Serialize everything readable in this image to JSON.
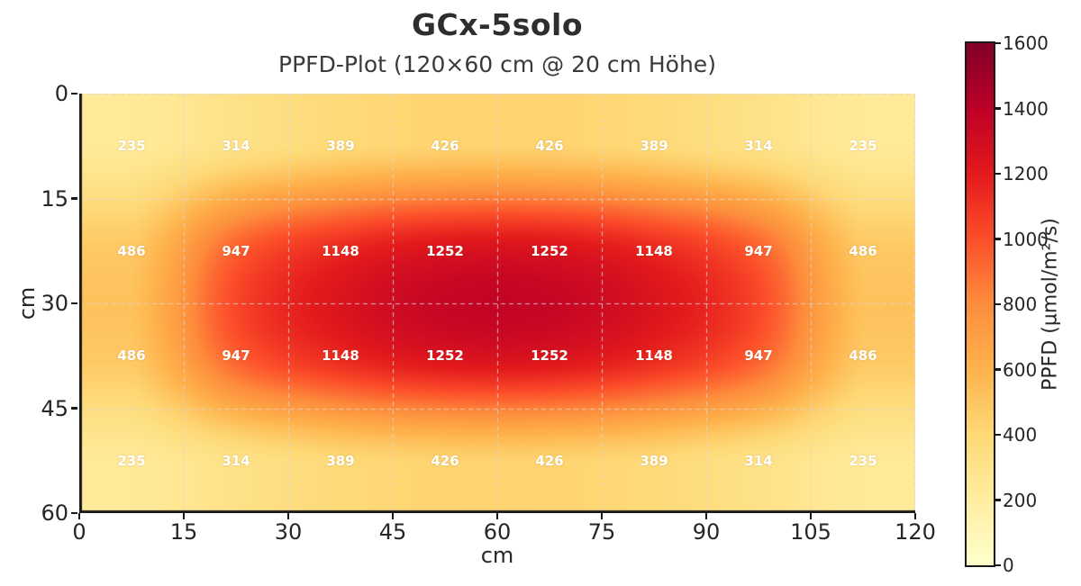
{
  "chart_data": {
    "type": "heatmap",
    "title": "GCx-5solo",
    "subtitle": "PPFD-Plot (120×60 cm @ 20 cm Höhe)",
    "xlabel": "cm",
    "ylabel": "cm",
    "x_range": [
      0,
      120
    ],
    "y_range": [
      0,
      60
    ],
    "y_inverted": true,
    "grid": true,
    "x_ticks": [
      0,
      15,
      30,
      45,
      60,
      75,
      90,
      105,
      120
    ],
    "y_ticks": [
      0,
      15,
      30,
      45,
      60
    ],
    "columns_cm": [
      7.5,
      22.5,
      37.5,
      52.5,
      67.5,
      82.5,
      97.5,
      112.5
    ],
    "rows_cm": [
      7.5,
      22.5,
      37.5,
      52.5
    ],
    "values": [
      [
        235,
        314,
        389,
        426,
        426,
        389,
        314,
        235
      ],
      [
        486,
        947,
        1148,
        1252,
        1252,
        1148,
        947,
        486
      ],
      [
        486,
        947,
        1148,
        1252,
        1252,
        1148,
        947,
        486
      ],
      [
        235,
        314,
        389,
        426,
        426,
        389,
        314,
        235
      ]
    ],
    "annotation_color": "#ffffff",
    "gridline_color": "rgba(216,216,216,0.85)",
    "spine_color": "#1a1a1a",
    "colorbar": {
      "label": "PPFD (µmol/m²/s)",
      "min": 0,
      "max": 1600,
      "ticks": [
        0,
        200,
        400,
        600,
        800,
        1000,
        1200,
        1400,
        1600
      ],
      "colormap_name": "YlOrRd",
      "colormap_positions": [
        0,
        0.125,
        0.25,
        0.375,
        0.5,
        0.625,
        0.75,
        0.875,
        1.0
      ],
      "colormap_colors": [
        "#ffffcc",
        "#ffeda0",
        "#fed976",
        "#feb24c",
        "#fd8d3c",
        "#fc4e2a",
        "#e31a1c",
        "#bd0026",
        "#800026"
      ]
    }
  }
}
